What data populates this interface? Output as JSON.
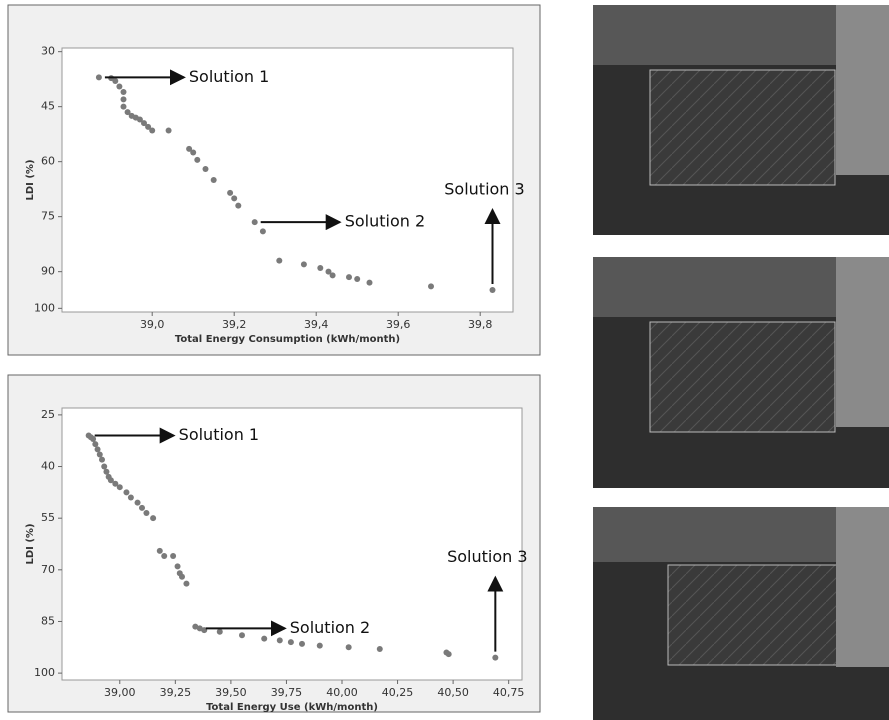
{
  "chart_data": [
    {
      "type": "scatter",
      "color": "#7a7a7a",
      "x_label": "Total Energy Consumption  (kWh/month)",
      "y_label": "LDI (%)",
      "xlim": [
        38.78,
        39.88
      ],
      "ylim": [
        101,
        29
      ],
      "xticks": [
        {
          "value": 39.0,
          "label": "39,0"
        },
        {
          "value": 39.2,
          "label": "39,2"
        },
        {
          "value": 39.4,
          "label": "39,4"
        },
        {
          "value": 39.6,
          "label": "39,6"
        },
        {
          "value": 39.8,
          "label": "39,8"
        }
      ],
      "yticks": [
        30,
        45,
        60,
        75,
        90,
        100
      ],
      "x": [
        38.87,
        38.9,
        38.91,
        38.92,
        38.93,
        38.93,
        38.93,
        38.94,
        38.95,
        38.96,
        38.97,
        38.98,
        38.99,
        39.0,
        39.04,
        39.09,
        39.1,
        39.11,
        39.13,
        39.15,
        39.19,
        39.2,
        39.21,
        39.25,
        39.27,
        39.31,
        39.37,
        39.41,
        39.43,
        39.44,
        39.48,
        39.5,
        39.53,
        39.68,
        39.83
      ],
      "values": [
        37,
        37.2,
        38,
        39.5,
        41,
        43,
        45,
        46.5,
        47.5,
        48,
        48.5,
        49.5,
        50.5,
        51.5,
        51.5,
        56.5,
        57.5,
        59.5,
        62,
        65,
        68.5,
        70,
        72,
        76.5,
        79,
        87,
        88,
        89,
        90,
        91,
        91.5,
        92,
        93,
        94,
        95
      ],
      "annotations": [
        "Solution 1",
        "Solution 2",
        "Solution 3"
      ]
    },
    {
      "type": "scatter",
      "color": "#7a7a7a",
      "x_label": "Total Energy Use  (kWh/month)",
      "y_label": "LDI (%)",
      "xlim": [
        38.74,
        40.81
      ],
      "ylim": [
        102,
        23
      ],
      "xticks": [
        {
          "value": 39.0,
          "label": "39,00"
        },
        {
          "value": 39.25,
          "label": "39,25"
        },
        {
          "value": 39.5,
          "label": "39,50"
        },
        {
          "value": 39.75,
          "label": "39,75"
        },
        {
          "value": 40.0,
          "label": "40,00"
        },
        {
          "value": 40.25,
          "label": "40,25"
        },
        {
          "value": 40.5,
          "label": "40,50"
        },
        {
          "value": 40.75,
          "label": "40,75"
        }
      ],
      "yticks": [
        25,
        40,
        55,
        70,
        85,
        100
      ],
      "x": [
        38.86,
        38.87,
        38.88,
        38.89,
        38.9,
        38.91,
        38.92,
        38.93,
        38.94,
        38.95,
        38.96,
        38.98,
        39.0,
        39.03,
        39.05,
        39.08,
        39.1,
        39.12,
        39.15,
        39.18,
        39.2,
        39.24,
        39.26,
        39.27,
        39.28,
        39.3,
        39.34,
        39.36,
        39.38,
        39.45,
        39.55,
        39.65,
        39.72,
        39.77,
        39.82,
        39.9,
        40.03,
        40.17,
        40.47,
        40.48,
        40.69
      ],
      "values": [
        31,
        31.5,
        32,
        33.5,
        35,
        36.5,
        38,
        40,
        41.5,
        43,
        44,
        45,
        46,
        47.5,
        49,
        50.5,
        52,
        53.5,
        55,
        64.5,
        66,
        66,
        69,
        71,
        72,
        74,
        86.5,
        87,
        87.5,
        88,
        89,
        90,
        90.5,
        91,
        91.5,
        92,
        92.5,
        93,
        94,
        94.5,
        95.5
      ],
      "annotations": [
        "Solution 1",
        "Solution 2",
        "Solution 3"
      ]
    }
  ]
}
